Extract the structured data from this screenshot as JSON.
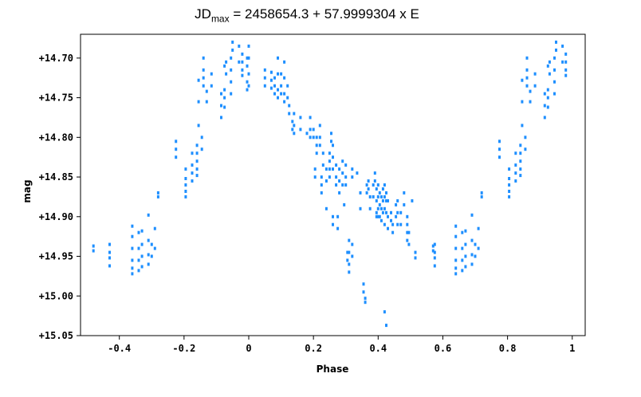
{
  "chart_data": {
    "type": "scatter",
    "title_main": "JD",
    "title_sub": "max",
    "title_rest": " = 2458654.3 + 57.9999304 x E",
    "xlabel": "Phase",
    "ylabel": "mag",
    "xlim": [
      -0.52,
      1.04
    ],
    "ylim": [
      14.67,
      15.05
    ],
    "y_inverted": true,
    "grid": false,
    "point_color": "#1e8fff",
    "x_ticks": [
      {
        "v": -0.4,
        "label": "-0.4"
      },
      {
        "v": -0.2,
        "label": "-0.2"
      },
      {
        "v": 0,
        "label": "0"
      },
      {
        "v": 0.2,
        "label": "0.2"
      },
      {
        "v": 0.4,
        "label": "0.4"
      },
      {
        "v": 0.6,
        "label": "0.6"
      },
      {
        "v": 0.8,
        "label": "0.8"
      },
      {
        "v": 1,
        "label": "1"
      }
    ],
    "y_ticks": [
      {
        "v": 14.7,
        "label": "+14.70"
      },
      {
        "v": 14.75,
        "label": "+14.75"
      },
      {
        "v": 14.8,
        "label": "+14.80"
      },
      {
        "v": 14.85,
        "label": "+14.85"
      },
      {
        "v": 14.9,
        "label": "+14.90"
      },
      {
        "v": 14.95,
        "label": "+14.95"
      },
      {
        "v": 15.0,
        "label": "+15.00"
      },
      {
        "v": 15.05,
        "label": "+15.05"
      }
    ],
    "points": [
      [
        -0.48,
        14.937
      ],
      [
        -0.48,
        14.943
      ],
      [
        -0.43,
        14.935
      ],
      [
        -0.43,
        14.945
      ],
      [
        -0.43,
        14.952
      ],
      [
        -0.43,
        14.962
      ],
      [
        -0.36,
        14.912
      ],
      [
        -0.36,
        14.925
      ],
      [
        -0.36,
        14.94
      ],
      [
        -0.36,
        14.955
      ],
      [
        -0.36,
        14.965
      ],
      [
        -0.36,
        14.972
      ],
      [
        -0.34,
        14.92
      ],
      [
        -0.34,
        14.94
      ],
      [
        -0.34,
        14.955
      ],
      [
        -0.34,
        14.968
      ],
      [
        -0.33,
        14.918
      ],
      [
        -0.33,
        14.935
      ],
      [
        -0.33,
        14.95
      ],
      [
        -0.33,
        14.963
      ],
      [
        -0.31,
        14.898
      ],
      [
        -0.31,
        14.93
      ],
      [
        -0.31,
        14.948
      ],
      [
        -0.31,
        14.96
      ],
      [
        -0.3,
        14.935
      ],
      [
        -0.3,
        14.95
      ],
      [
        -0.29,
        14.915
      ],
      [
        -0.29,
        14.94
      ],
      [
        -0.28,
        14.87
      ],
      [
        -0.28,
        14.875
      ],
      [
        -0.225,
        14.805
      ],
      [
        -0.225,
        14.815
      ],
      [
        -0.225,
        14.825
      ],
      [
        -0.195,
        14.84
      ],
      [
        -0.195,
        14.852
      ],
      [
        -0.195,
        14.86
      ],
      [
        -0.195,
        14.868
      ],
      [
        -0.195,
        14.875
      ],
      [
        -0.175,
        14.82
      ],
      [
        -0.175,
        14.835
      ],
      [
        -0.175,
        14.845
      ],
      [
        -0.175,
        14.855
      ],
      [
        -0.16,
        14.81
      ],
      [
        -0.16,
        14.82
      ],
      [
        -0.16,
        14.83
      ],
      [
        -0.16,
        14.84
      ],
      [
        -0.16,
        14.848
      ],
      [
        -0.145,
        14.8
      ],
      [
        -0.145,
        14.815
      ],
      [
        -0.155,
        14.785
      ],
      [
        -0.155,
        14.755
      ],
      [
        -0.155,
        14.728
      ],
      [
        -0.14,
        14.7
      ],
      [
        -0.14,
        14.715
      ],
      [
        -0.14,
        14.725
      ],
      [
        -0.14,
        14.735
      ],
      [
        -0.13,
        14.755
      ],
      [
        -0.13,
        14.742
      ],
      [
        -0.115,
        14.72
      ],
      [
        -0.115,
        14.735
      ],
      [
        -0.085,
        14.745
      ],
      [
        -0.085,
        14.76
      ],
      [
        -0.085,
        14.775
      ],
      [
        -0.075,
        14.71
      ],
      [
        -0.075,
        14.74
      ],
      [
        -0.075,
        14.75
      ],
      [
        -0.075,
        14.762
      ],
      [
        -0.07,
        14.705
      ],
      [
        -0.07,
        14.72
      ],
      [
        -0.055,
        14.7
      ],
      [
        -0.055,
        14.715
      ],
      [
        -0.055,
        14.73
      ],
      [
        -0.055,
        14.745
      ],
      [
        -0.05,
        14.68
      ],
      [
        -0.05,
        14.69
      ],
      [
        -0.03,
        14.685
      ],
      [
        -0.03,
        14.705
      ],
      [
        -0.02,
        14.695
      ],
      [
        -0.02,
        14.705
      ],
      [
        -0.02,
        14.715
      ],
      [
        -0.02,
        14.722
      ],
      [
        -0.005,
        14.7
      ],
      [
        -0.005,
        14.71
      ],
      [
        -0.005,
        14.73
      ],
      [
        -0.005,
        14.74
      ],
      [
        0.0,
        14.685
      ],
      [
        0.0,
        14.7
      ],
      [
        0.0,
        14.72
      ],
      [
        0.0,
        14.735
      ],
      [
        0.05,
        14.715
      ],
      [
        0.05,
        14.725
      ],
      [
        0.05,
        14.735
      ],
      [
        0.07,
        14.718
      ],
      [
        0.07,
        14.728
      ],
      [
        0.07,
        14.738
      ],
      [
        0.08,
        14.725
      ],
      [
        0.08,
        14.735
      ],
      [
        0.08,
        14.745
      ],
      [
        0.09,
        14.7
      ],
      [
        0.09,
        14.72
      ],
      [
        0.09,
        14.74
      ],
      [
        0.09,
        14.75
      ],
      [
        0.1,
        14.72
      ],
      [
        0.1,
        14.735
      ],
      [
        0.1,
        14.745
      ],
      [
        0.11,
        14.705
      ],
      [
        0.11,
        14.725
      ],
      [
        0.11,
        14.745
      ],
      [
        0.11,
        14.755
      ],
      [
        0.12,
        14.735
      ],
      [
        0.12,
        14.75
      ],
      [
        0.125,
        14.76
      ],
      [
        0.125,
        14.77
      ],
      [
        0.135,
        14.78
      ],
      [
        0.135,
        14.79
      ],
      [
        0.14,
        14.77
      ],
      [
        0.14,
        14.785
      ],
      [
        0.14,
        14.795
      ],
      [
        0.16,
        14.775
      ],
      [
        0.16,
        14.79
      ],
      [
        0.18,
        14.795
      ],
      [
        0.19,
        14.775
      ],
      [
        0.19,
        14.79
      ],
      [
        0.19,
        14.8
      ],
      [
        0.2,
        14.79
      ],
      [
        0.2,
        14.8
      ],
      [
        0.21,
        14.8
      ],
      [
        0.21,
        14.81
      ],
      [
        0.21,
        14.82
      ],
      [
        0.205,
        14.84
      ],
      [
        0.205,
        14.85
      ],
      [
        0.22,
        14.785
      ],
      [
        0.22,
        14.8
      ],
      [
        0.22,
        14.81
      ],
      [
        0.225,
        14.85
      ],
      [
        0.225,
        14.86
      ],
      [
        0.225,
        14.87
      ],
      [
        0.23,
        14.82
      ],
      [
        0.23,
        14.835
      ],
      [
        0.24,
        14.84
      ],
      [
        0.24,
        14.855
      ],
      [
        0.24,
        14.89
      ],
      [
        0.25,
        14.82
      ],
      [
        0.25,
        14.83
      ],
      [
        0.25,
        14.84
      ],
      [
        0.25,
        14.85
      ],
      [
        0.255,
        14.795
      ],
      [
        0.255,
        14.805
      ],
      [
        0.26,
        14.81
      ],
      [
        0.26,
        14.825
      ],
      [
        0.26,
        14.84
      ],
      [
        0.26,
        14.9
      ],
      [
        0.26,
        14.91
      ],
      [
        0.27,
        14.835
      ],
      [
        0.27,
        14.85
      ],
      [
        0.27,
        14.86
      ],
      [
        0.275,
        14.9
      ],
      [
        0.275,
        14.915
      ],
      [
        0.28,
        14.84
      ],
      [
        0.28,
        14.855
      ],
      [
        0.28,
        14.87
      ],
      [
        0.29,
        14.83
      ],
      [
        0.29,
        14.845
      ],
      [
        0.29,
        14.86
      ],
      [
        0.295,
        14.885
      ],
      [
        0.3,
        14.835
      ],
      [
        0.3,
        14.85
      ],
      [
        0.3,
        14.86
      ],
      [
        0.305,
        14.945
      ],
      [
        0.305,
        14.955
      ],
      [
        0.31,
        14.93
      ],
      [
        0.31,
        14.945
      ],
      [
        0.31,
        14.96
      ],
      [
        0.31,
        14.97
      ],
      [
        0.32,
        14.84
      ],
      [
        0.32,
        14.85
      ],
      [
        0.32,
        14.935
      ],
      [
        0.32,
        14.95
      ],
      [
        0.335,
        14.845
      ],
      [
        0.345,
        14.87
      ],
      [
        0.345,
        14.89
      ],
      [
        0.355,
        14.985
      ],
      [
        0.355,
        14.995
      ],
      [
        0.36,
        15.003
      ],
      [
        0.36,
        15.008
      ],
      [
        0.365,
        14.86
      ],
      [
        0.365,
        14.87
      ],
      [
        0.37,
        14.855
      ],
      [
        0.37,
        14.865
      ],
      [
        0.375,
        14.875
      ],
      [
        0.375,
        14.89
      ],
      [
        0.385,
        14.86
      ],
      [
        0.385,
        14.875
      ],
      [
        0.39,
        14.845
      ],
      [
        0.39,
        14.855
      ],
      [
        0.395,
        14.865
      ],
      [
        0.395,
        14.88
      ],
      [
        0.395,
        14.895
      ],
      [
        0.395,
        14.9
      ],
      [
        0.4,
        14.86
      ],
      [
        0.4,
        14.875
      ],
      [
        0.4,
        14.89
      ],
      [
        0.4,
        14.9
      ],
      [
        0.405,
        14.87
      ],
      [
        0.405,
        14.885
      ],
      [
        0.405,
        14.9
      ],
      [
        0.41,
        14.875
      ],
      [
        0.41,
        14.89
      ],
      [
        0.41,
        14.905
      ],
      [
        0.415,
        14.865
      ],
      [
        0.415,
        14.88
      ],
      [
        0.415,
        14.895
      ],
      [
        0.42,
        14.86
      ],
      [
        0.42,
        14.875
      ],
      [
        0.42,
        14.89
      ],
      [
        0.42,
        14.91
      ],
      [
        0.425,
        14.87
      ],
      [
        0.425,
        14.88
      ],
      [
        0.425,
        14.895
      ],
      [
        0.43,
        14.88
      ],
      [
        0.43,
        14.9
      ],
      [
        0.43,
        14.915
      ],
      [
        0.44,
        14.895
      ],
      [
        0.44,
        14.905
      ],
      [
        0.445,
        14.91
      ],
      [
        0.445,
        14.92
      ],
      [
        0.455,
        14.885
      ],
      [
        0.455,
        14.9
      ],
      [
        0.46,
        14.88
      ],
      [
        0.46,
        14.895
      ],
      [
        0.46,
        14.91
      ],
      [
        0.47,
        14.895
      ],
      [
        0.47,
        14.91
      ],
      [
        0.48,
        14.87
      ],
      [
        0.48,
        14.885
      ],
      [
        0.49,
        14.9
      ],
      [
        0.49,
        14.91
      ],
      [
        0.49,
        14.92
      ],
      [
        0.49,
        14.93
      ],
      [
        0.495,
        14.92
      ],
      [
        0.495,
        14.935
      ],
      [
        0.505,
        14.88
      ],
      [
        0.515,
        14.945
      ],
      [
        0.515,
        14.952
      ],
      [
        0.42,
        15.02
      ],
      [
        0.425,
        15.037
      ],
      [
        0.57,
        14.937
      ],
      [
        0.57,
        14.943
      ],
      [
        0.575,
        14.935
      ],
      [
        0.575,
        14.945
      ],
      [
        0.575,
        14.952
      ],
      [
        0.575,
        14.962
      ],
      [
        0.64,
        14.912
      ],
      [
        0.64,
        14.925
      ],
      [
        0.64,
        14.94
      ],
      [
        0.64,
        14.955
      ],
      [
        0.64,
        14.965
      ],
      [
        0.64,
        14.972
      ],
      [
        0.66,
        14.92
      ],
      [
        0.66,
        14.94
      ],
      [
        0.66,
        14.955
      ],
      [
        0.66,
        14.968
      ],
      [
        0.67,
        14.918
      ],
      [
        0.67,
        14.935
      ],
      [
        0.67,
        14.95
      ],
      [
        0.67,
        14.963
      ],
      [
        0.69,
        14.898
      ],
      [
        0.69,
        14.93
      ],
      [
        0.69,
        14.948
      ],
      [
        0.69,
        14.96
      ],
      [
        0.7,
        14.935
      ],
      [
        0.7,
        14.95
      ],
      [
        0.71,
        14.915
      ],
      [
        0.71,
        14.94
      ],
      [
        0.72,
        14.87
      ],
      [
        0.72,
        14.875
      ],
      [
        0.775,
        14.805
      ],
      [
        0.775,
        14.815
      ],
      [
        0.775,
        14.825
      ],
      [
        0.805,
        14.84
      ],
      [
        0.805,
        14.852
      ],
      [
        0.805,
        14.86
      ],
      [
        0.805,
        14.868
      ],
      [
        0.805,
        14.875
      ],
      [
        0.825,
        14.82
      ],
      [
        0.825,
        14.835
      ],
      [
        0.825,
        14.845
      ],
      [
        0.825,
        14.855
      ],
      [
        0.84,
        14.81
      ],
      [
        0.84,
        14.82
      ],
      [
        0.84,
        14.83
      ],
      [
        0.84,
        14.84
      ],
      [
        0.84,
        14.848
      ],
      [
        0.855,
        14.8
      ],
      [
        0.855,
        14.815
      ],
      [
        0.845,
        14.785
      ],
      [
        0.845,
        14.755
      ],
      [
        0.845,
        14.728
      ],
      [
        0.86,
        14.7
      ],
      [
        0.86,
        14.715
      ],
      [
        0.86,
        14.725
      ],
      [
        0.86,
        14.735
      ],
      [
        0.87,
        14.755
      ],
      [
        0.87,
        14.742
      ],
      [
        0.885,
        14.72
      ],
      [
        0.885,
        14.735
      ],
      [
        0.915,
        14.745
      ],
      [
        0.915,
        14.76
      ],
      [
        0.915,
        14.775
      ],
      [
        0.925,
        14.71
      ],
      [
        0.925,
        14.74
      ],
      [
        0.925,
        14.75
      ],
      [
        0.925,
        14.762
      ],
      [
        0.93,
        14.705
      ],
      [
        0.93,
        14.72
      ],
      [
        0.945,
        14.7
      ],
      [
        0.945,
        14.715
      ],
      [
        0.945,
        14.73
      ],
      [
        0.945,
        14.745
      ],
      [
        0.95,
        14.68
      ],
      [
        0.95,
        14.69
      ],
      [
        0.97,
        14.685
      ],
      [
        0.97,
        14.705
      ],
      [
        0.98,
        14.695
      ],
      [
        0.98,
        14.705
      ],
      [
        0.98,
        14.715
      ],
      [
        0.98,
        14.722
      ]
    ]
  }
}
